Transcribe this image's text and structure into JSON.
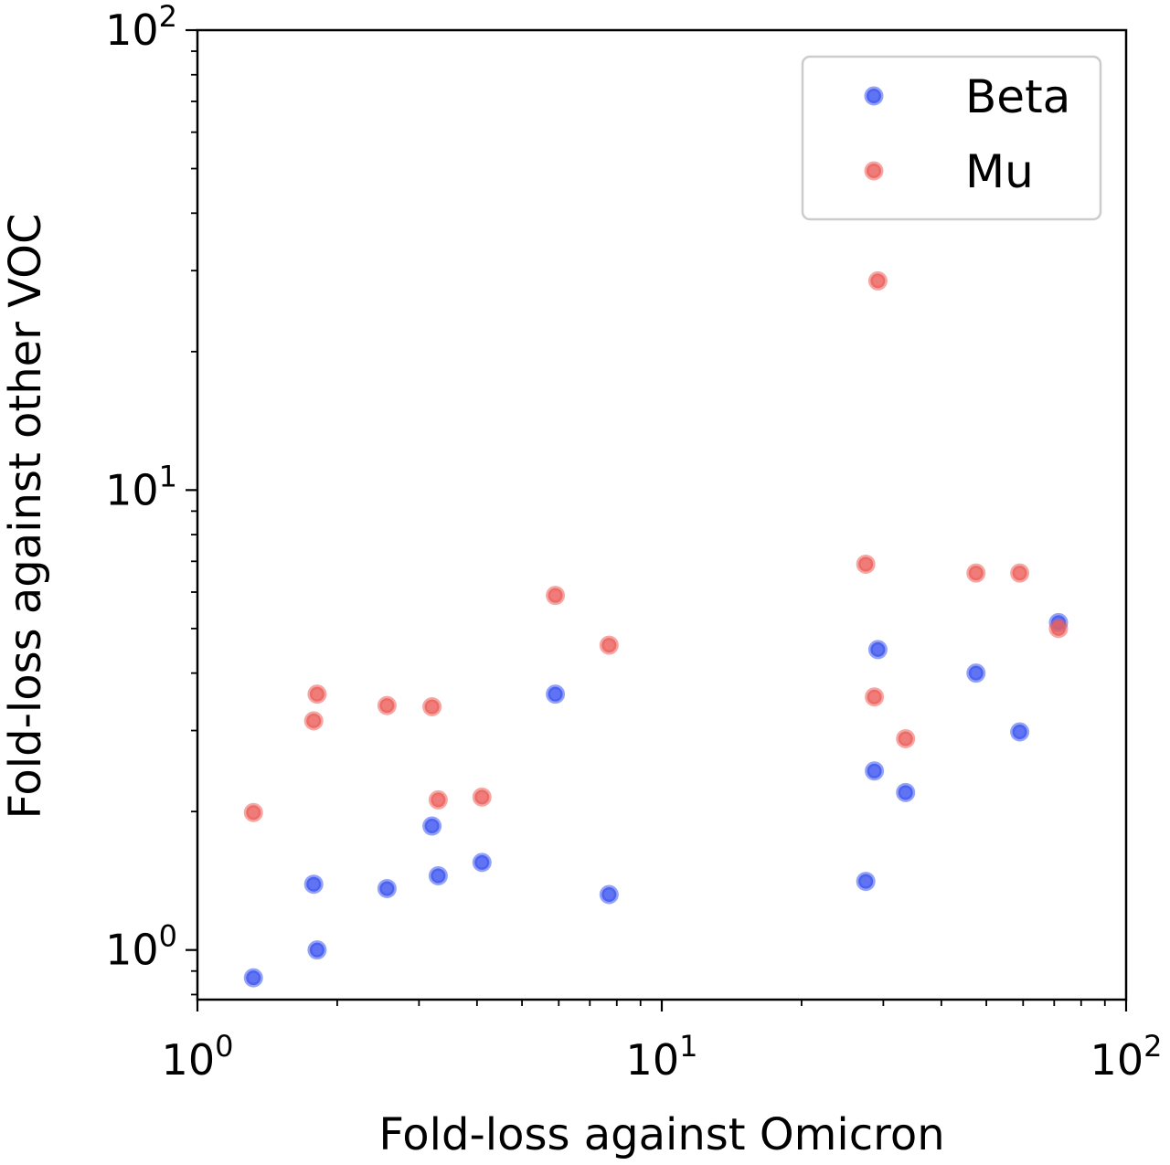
{
  "chart_data": {
    "type": "scatter",
    "title": "",
    "xlabel": "Fold-loss against Omicron",
    "ylabel": "Fold-loss against other VOC",
    "xscale": "log",
    "yscale": "log",
    "xlim": [
      1,
      100
    ],
    "ylim": [
      0.78,
      100
    ],
    "x_ticks": [
      {
        "value": 1,
        "base": "10",
        "exp": "0"
      },
      {
        "value": 10,
        "base": "10",
        "exp": "1"
      },
      {
        "value": 100,
        "base": "10",
        "exp": "2"
      }
    ],
    "y_ticks": [
      {
        "value": 1,
        "base": "10",
        "exp": "0"
      },
      {
        "value": 10,
        "base": "10",
        "exp": "1"
      },
      {
        "value": 100,
        "base": "10",
        "exp": "2"
      }
    ],
    "grid": false,
    "legend_position": "top-right",
    "series": [
      {
        "name": "Beta",
        "color": "#3d55f0",
        "points": [
          {
            "x": 1.32,
            "y": 0.87
          },
          {
            "x": 1.78,
            "y": 1.39
          },
          {
            "x": 1.81,
            "y": 1.0
          },
          {
            "x": 2.56,
            "y": 1.36
          },
          {
            "x": 3.2,
            "y": 1.86
          },
          {
            "x": 3.3,
            "y": 1.45
          },
          {
            "x": 4.1,
            "y": 1.55
          },
          {
            "x": 5.9,
            "y": 3.6
          },
          {
            "x": 7.7,
            "y": 1.32
          },
          {
            "x": 27.5,
            "y": 1.41
          },
          {
            "x": 28.7,
            "y": 2.45
          },
          {
            "x": 29.2,
            "y": 4.5
          },
          {
            "x": 33.5,
            "y": 2.2
          },
          {
            "x": 47.5,
            "y": 4.0
          },
          {
            "x": 59.0,
            "y": 2.98
          },
          {
            "x": 71.5,
            "y": 5.15
          }
        ]
      },
      {
        "name": "Mu",
        "color": "#ec5f5a",
        "points": [
          {
            "x": 1.32,
            "y": 1.99
          },
          {
            "x": 1.78,
            "y": 3.15
          },
          {
            "x": 1.81,
            "y": 3.6
          },
          {
            "x": 2.56,
            "y": 3.4
          },
          {
            "x": 3.2,
            "y": 3.38
          },
          {
            "x": 3.3,
            "y": 2.12
          },
          {
            "x": 4.1,
            "y": 2.15
          },
          {
            "x": 5.9,
            "y": 5.9
          },
          {
            "x": 7.7,
            "y": 4.6
          },
          {
            "x": 27.5,
            "y": 6.9
          },
          {
            "x": 28.7,
            "y": 3.55
          },
          {
            "x": 29.2,
            "y": 28.5
          },
          {
            "x": 33.5,
            "y": 2.88
          },
          {
            "x": 47.5,
            "y": 6.6
          },
          {
            "x": 59.0,
            "y": 6.6
          },
          {
            "x": 71.5,
            "y": 5.0
          }
        ]
      }
    ]
  }
}
